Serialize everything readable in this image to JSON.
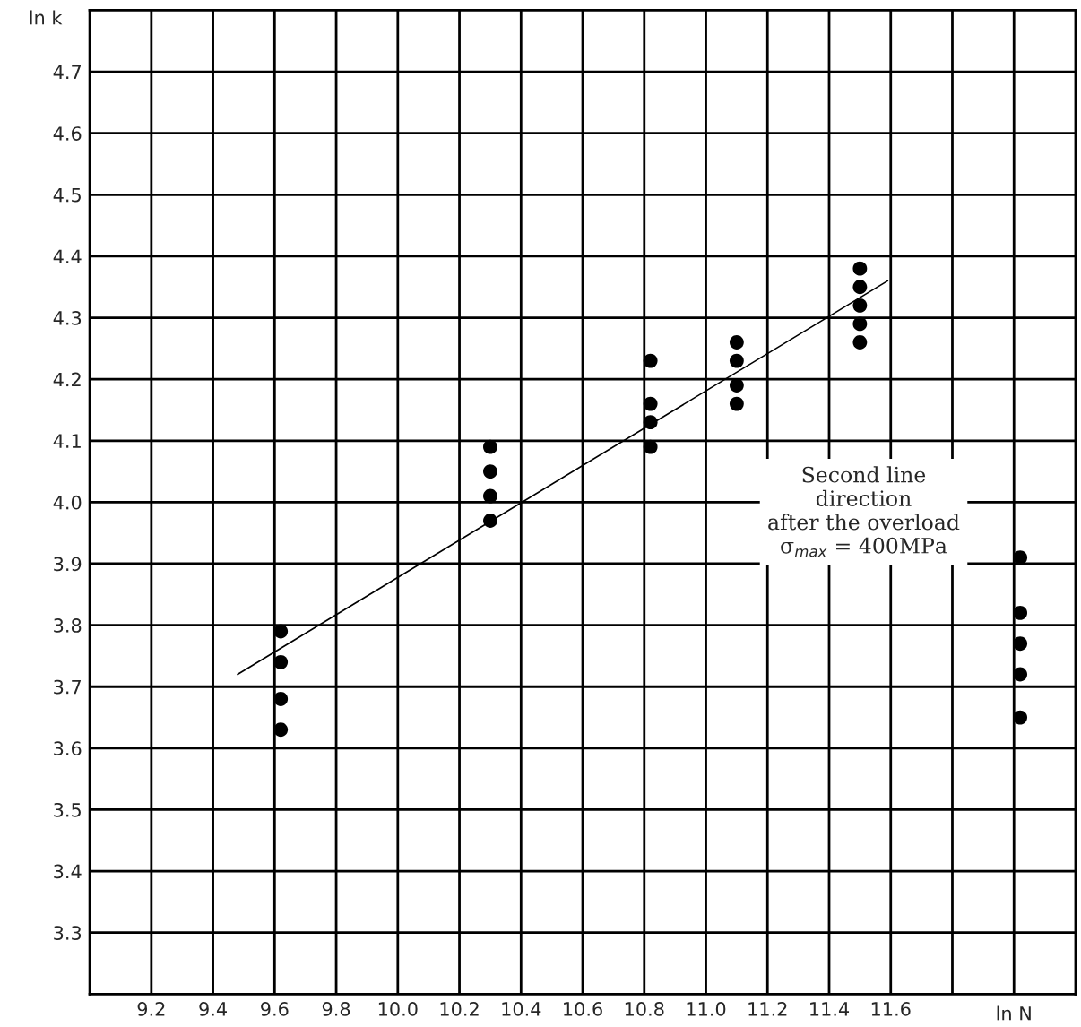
{
  "chart_data": {
    "type": "scatter",
    "xlabel": "ln N",
    "ylabel": "ln k",
    "xlim": [
      9.0,
      12.2
    ],
    "ylim": [
      3.2,
      4.8
    ],
    "xticks": [
      9.2,
      9.4,
      9.6,
      9.8,
      {
        "value": 10,
        "label": "10.0"
      },
      10.2,
      10.4,
      10.6,
      10.8,
      {
        "value": 11,
        "label": "11.0"
      },
      11.2,
      11.4,
      11.6,
      {
        "value": 11.8,
        "label": null
      },
      {
        "value": 12.0,
        "label": null
      }
    ],
    "yticks": [
      3.3,
      3.4,
      3.5,
      3.6,
      3.7,
      3.8,
      3.9,
      {
        "value": 4,
        "label": "4.0"
      },
      4.1,
      4.2,
      4.3,
      4.4,
      4.5,
      4.6,
      4.7
    ],
    "grid": true,
    "legend": false,
    "series": [
      {
        "color": "#000000",
        "marker": "circle",
        "x": [
          9.62,
          9.62,
          9.62,
          9.62,
          10.3,
          10.3,
          10.3,
          10.3,
          10.82,
          10.82,
          10.82,
          10.82,
          11.1,
          11.1,
          11.1,
          11.1,
          11.5,
          11.5,
          11.5,
          11.5,
          11.5
        ],
        "values": [
          3.79,
          3.74,
          3.68,
          3.63,
          4.09,
          4.05,
          4.01,
          3.97,
          4.23,
          4.16,
          4.13,
          4.09,
          4.26,
          4.23,
          4.19,
          4.16,
          4.38,
          4.35,
          4.32,
          4.29,
          4.26
        ]
      },
      {
        "color": "#000000",
        "marker": "circle",
        "x": [
          12.02,
          12.02,
          12.02,
          12.02,
          12.02
        ],
        "values": [
          3.91,
          3.82,
          3.77,
          3.72,
          3.65
        ]
      },
      {
        "type": "line",
        "color": "#000000",
        "line_style": "solid",
        "marker": "none",
        "x": [
          9.48,
          11.59
        ],
        "values": [
          3.72,
          4.36
        ]
      }
    ],
    "annotations": [
      "Second line\ndirection\nafter the overload\nσ$_{max}$ = 400MPa"
    ]
  }
}
